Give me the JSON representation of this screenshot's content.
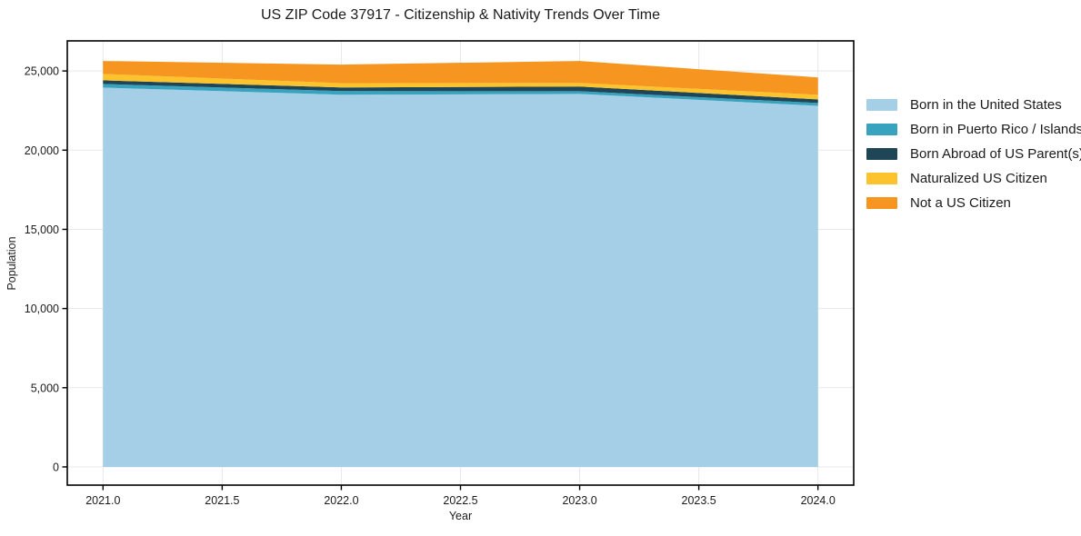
{
  "chart_data": {
    "type": "area",
    "stacked": true,
    "title": "US ZIP Code 37917 - Citizenship & Nativity Trends Over Time",
    "xlabel": "Year",
    "ylabel": "Population",
    "x": [
      2021,
      2022,
      2023,
      2024
    ],
    "series": [
      {
        "name": "Born in the United States",
        "color": "#A5CFE6",
        "values": [
          23950,
          23500,
          23550,
          22800
        ]
      },
      {
        "name": "Born in Puerto Rico / Islands",
        "color": "#38A3BE",
        "values": [
          230,
          230,
          175,
          175
        ]
      },
      {
        "name": "Born Abroad of US Parent(s)",
        "color": "#1F4656",
        "values": [
          230,
          230,
          290,
          230
        ]
      },
      {
        "name": "Naturalized US Citizen",
        "color": "#FCC32D",
        "values": [
          400,
          270,
          230,
          290
        ]
      },
      {
        "name": "Not a US Citizen",
        "color": "#F6951F",
        "values": [
          820,
          1170,
          1390,
          1100
        ]
      }
    ],
    "totals": [
      25630,
      25400,
      25635,
      24595
    ],
    "x_ticks": {
      "values": [
        2021.0,
        2021.5,
        2022.0,
        2022.5,
        2023.0,
        2023.5,
        2024.0
      ],
      "labels": [
        "2021.0",
        "2021.5",
        "2022.0",
        "2022.5",
        "2023.0",
        "2023.5",
        "2024.0"
      ]
    },
    "y_ticks": {
      "values": [
        0,
        5000,
        10000,
        15000,
        20000,
        25000
      ],
      "labels": [
        "0",
        "5,000",
        "10,000",
        "15,000",
        "20,000",
        "25,000"
      ]
    },
    "xlim": [
      2020.85,
      2024.15
    ],
    "ylim": [
      -1150,
      26900
    ],
    "grid": true,
    "legend_position": "right",
    "colors": {
      "grid": "#e8e8e8",
      "frame": "#000000",
      "tick_text": "#1a1a1a"
    }
  }
}
